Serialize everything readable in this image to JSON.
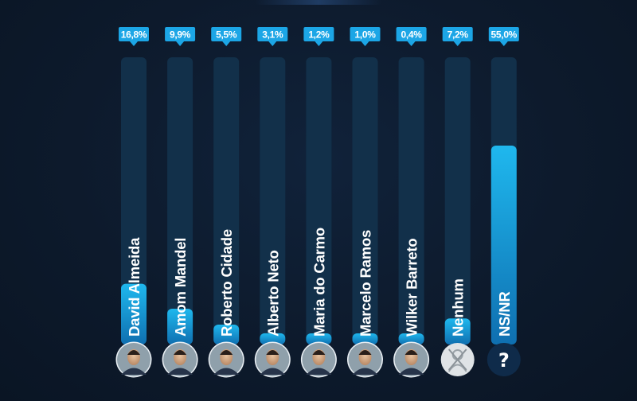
{
  "chart_data": {
    "type": "bar",
    "orientation": "vertical",
    "ylim": [
      0,
      55
    ],
    "grid": false,
    "categories": [
      "David Almeida",
      "Amom Mandel",
      "Roberto Cidade",
      "Alberto Neto",
      "Maria do Carmo",
      "Marcelo Ramos",
      "Wilker Barreto",
      "Nenhum",
      "NS/NR"
    ],
    "values": [
      16.8,
      9.9,
      5.5,
      3.1,
      1.2,
      1.0,
      0.4,
      7.2,
      55.0
    ],
    "value_labels": [
      "16,8%",
      "9,9%",
      "5,5%",
      "3,1%",
      "1,2%",
      "1,0%",
      "0,4%",
      "7,2%",
      "55,0%"
    ],
    "avatars": [
      "David Almeida",
      "Amom Mandel",
      "Roberto Cidade",
      "Alberto Neto",
      "Maria do Carmo",
      "Marcelo Ramos",
      "Wilker Barreto",
      "Nenhum",
      "NS/NR"
    ],
    "nsnr_symbol": "?",
    "colors": {
      "background": "#0d1a2c",
      "track": "#12304a",
      "bar_top": "#1fb8ee",
      "bar_bottom": "#0f6fb0",
      "label_bg": "#1ca6e6",
      "avatar_ring": "#e8eef3",
      "nsnr_avatar": "#0f2b4a"
    }
  }
}
